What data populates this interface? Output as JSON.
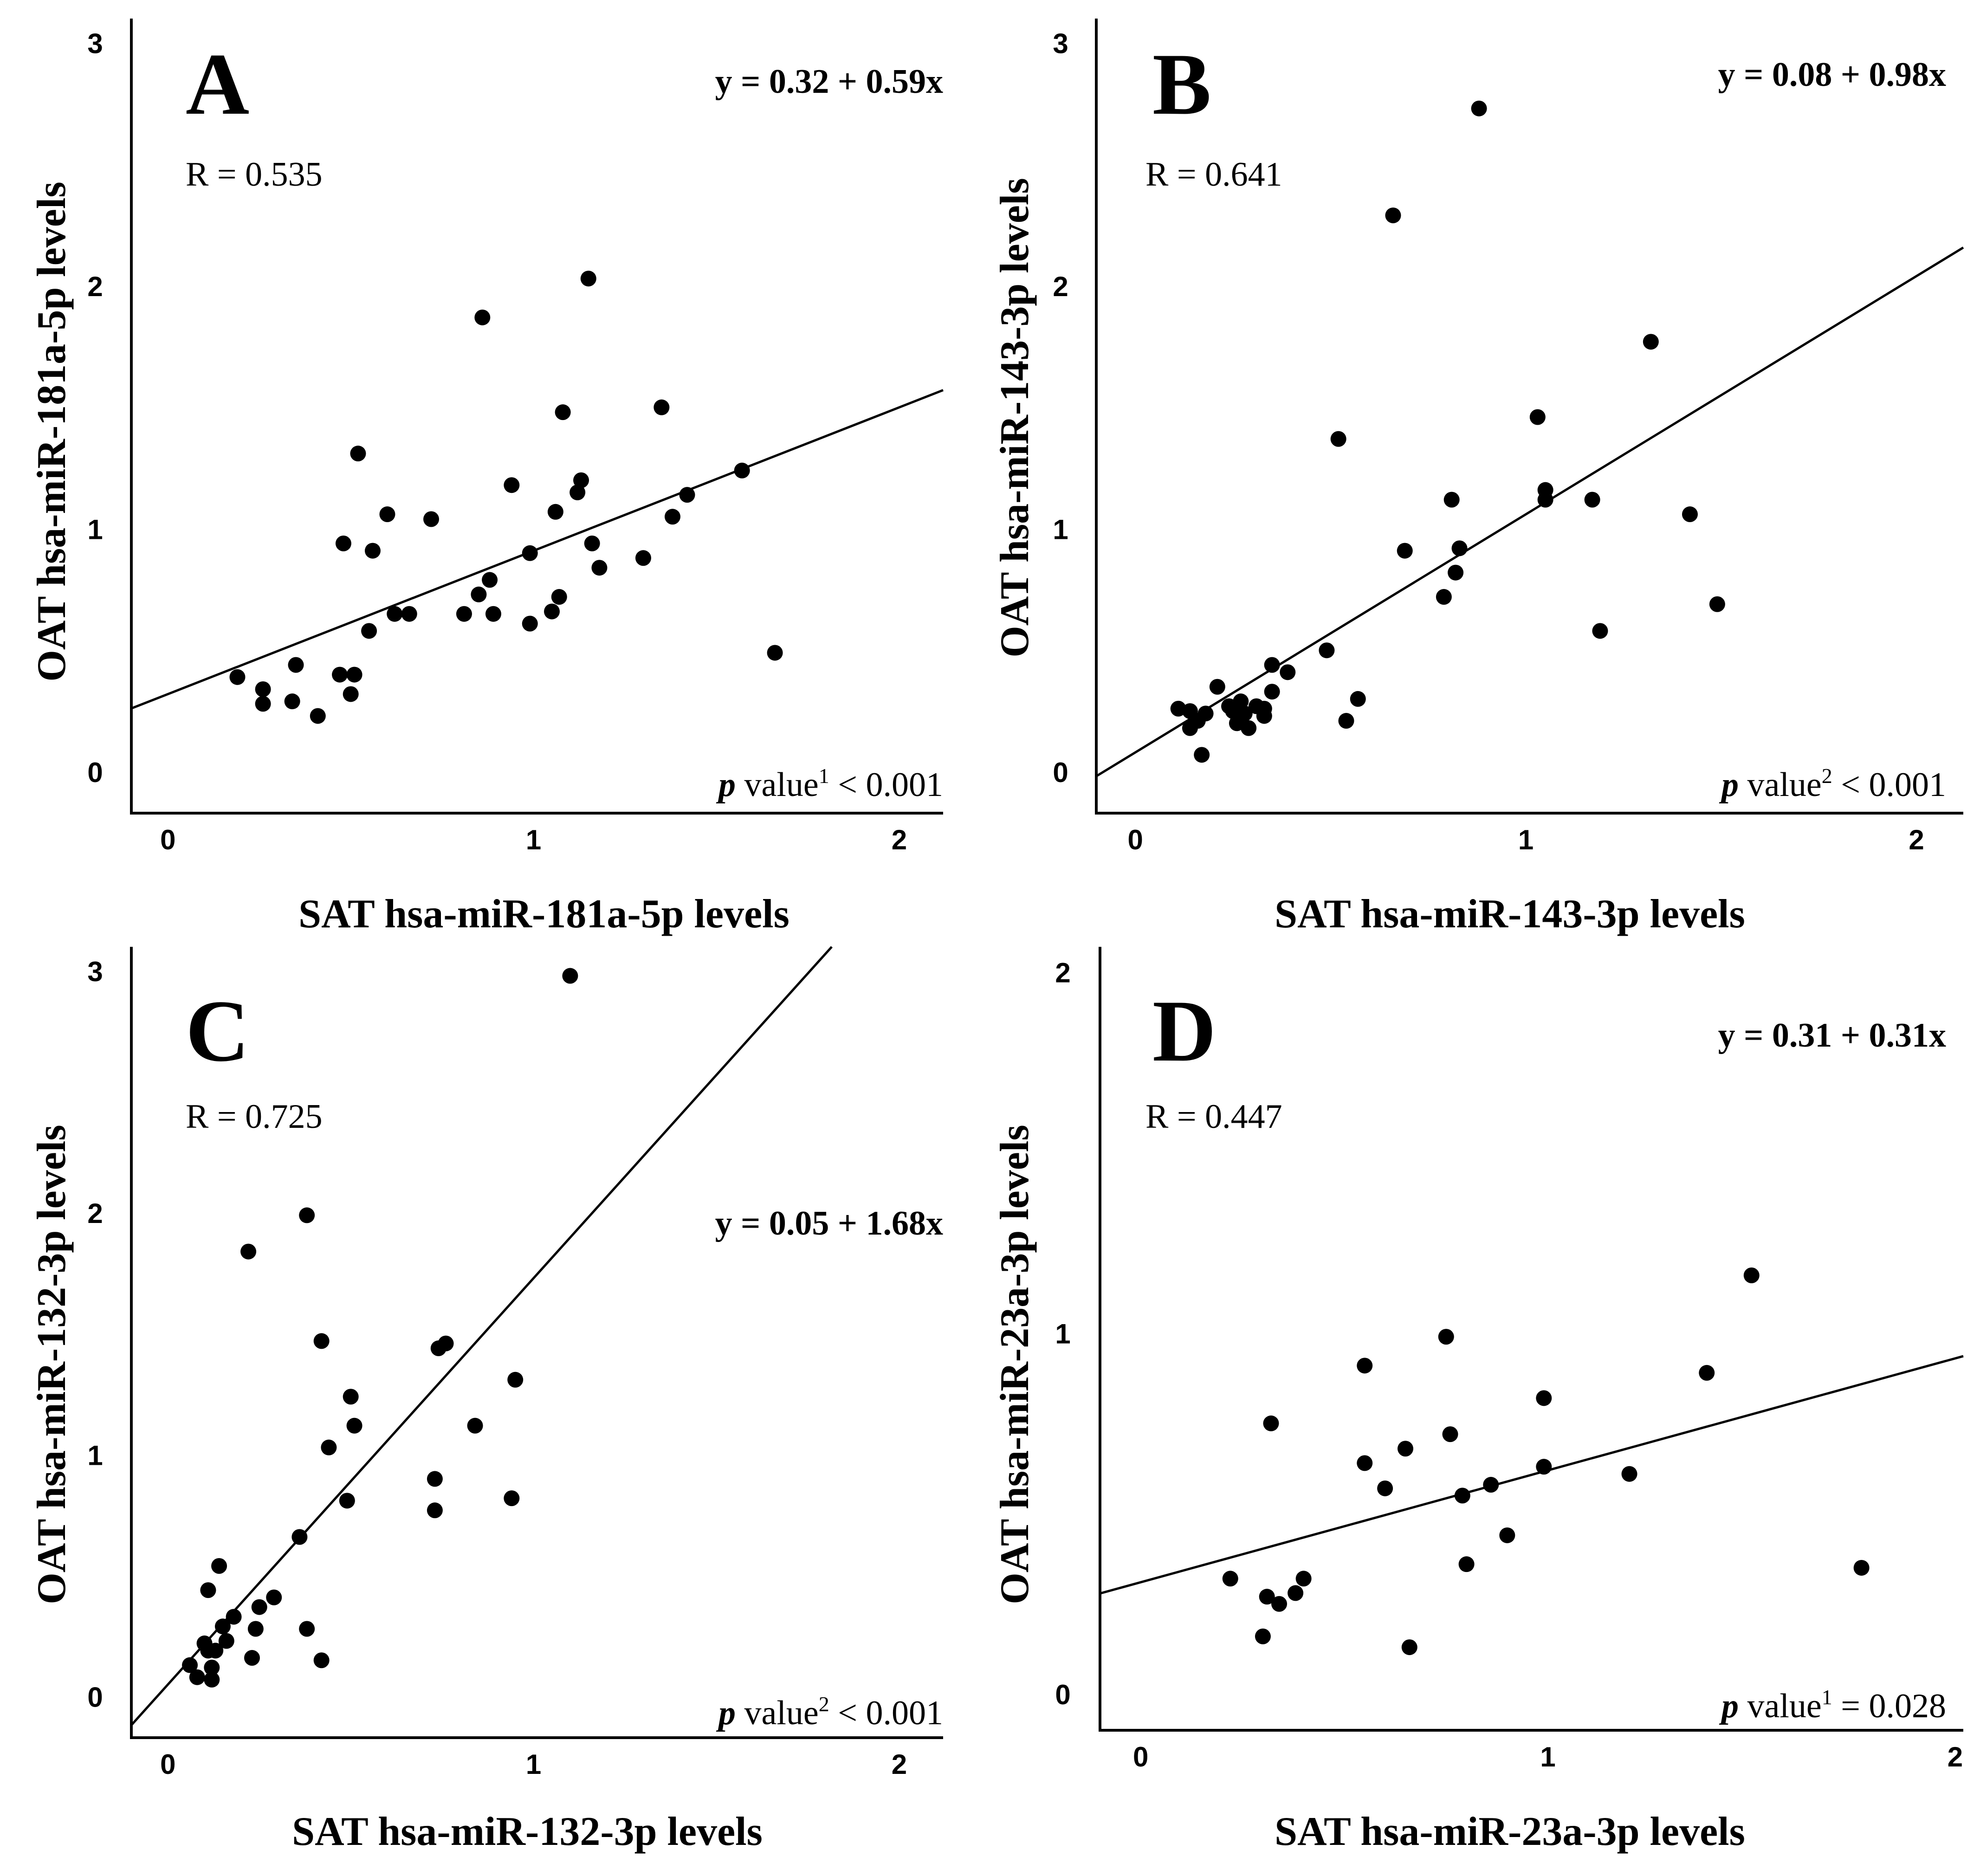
{
  "chart_data": [
    {
      "type": "scatter",
      "panel": "A",
      "xlabel": "SAT hsa-miR-181a-5p levels",
      "ylabel": "OAT hsa-miR-181a-5p levels",
      "xlim": [
        -0.1,
        2.12
      ],
      "ylim": [
        -0.17,
        3.1
      ],
      "xticks": [
        0,
        1,
        2
      ],
      "yticks": [
        0,
        1,
        2,
        3
      ],
      "xtick_labels": [
        "0",
        "1",
        "2"
      ],
      "ytick_labels": [
        "0",
        "1",
        "2",
        "3"
      ],
      "r_text": "R = 0.535",
      "equation": "y = 0.32 + 0.59x",
      "regression": {
        "intercept": 0.32,
        "slope": 0.59
      },
      "p_label": "p",
      "p_rest": " value",
      "p_sup": "1",
      "p_value": " < 0.001",
      "points": {
        "x": [
          0.19,
          0.26,
          0.26,
          0.34,
          0.35,
          0.41,
          0.47,
          0.48,
          0.5,
          0.51,
          0.52,
          0.55,
          0.56,
          0.6,
          0.62,
          0.66,
          0.72,
          0.81,
          0.85,
          0.86,
          0.88,
          0.89,
          0.94,
          0.99,
          0.99,
          1.05,
          1.06,
          1.07,
          1.08,
          1.12,
          1.13,
          1.15,
          1.16,
          1.18,
          1.3,
          1.35,
          1.38,
          1.42,
          1.57,
          1.66
        ],
        "y": [
          0.39,
          0.34,
          0.28,
          0.29,
          0.44,
          0.23,
          0.4,
          0.94,
          0.32,
          0.4,
          1.31,
          0.58,
          0.91,
          1.06,
          0.65,
          0.65,
          1.04,
          0.65,
          0.73,
          1.87,
          0.79,
          0.65,
          1.18,
          0.9,
          0.61,
          0.66,
          1.07,
          0.72,
          1.48,
          1.15,
          1.2,
          2.03,
          0.94,
          0.84,
          0.88,
          1.5,
          1.05,
          1.14,
          1.24,
          0.49
        ]
      }
    },
    {
      "type": "scatter",
      "panel": "B",
      "xlabel": "SAT hsa-miR-143-3p levels",
      "ylabel": "OAT hsa-miR-143-3p levels",
      "xlim": [
        -0.1,
        2.12
      ],
      "ylim": [
        -0.17,
        3.1
      ],
      "xticks": [
        0,
        1,
        2
      ],
      "yticks": [
        0,
        1,
        2,
        3
      ],
      "xtick_labels": [
        "0",
        "1",
        "2"
      ],
      "ytick_labels": [
        "0",
        "1",
        "2",
        "3"
      ],
      "r_text": "R = 0.641",
      "equation": "y = 0.08 + 0.98x",
      "regression": {
        "intercept": 0.08,
        "slope": 0.98
      },
      "p_label": "p",
      "p_rest": " value",
      "p_sup": "2",
      "p_value": " < 0.001",
      "points": {
        "x": [
          0.11,
          0.14,
          0.14,
          0.16,
          0.17,
          0.18,
          0.21,
          0.24,
          0.25,
          0.26,
          0.27,
          0.28,
          0.29,
          0.31,
          0.33,
          0.33,
          0.35,
          0.35,
          0.39,
          0.49,
          0.52,
          0.54,
          0.57,
          0.66,
          0.69,
          0.79,
          0.81,
          0.82,
          0.83,
          0.88,
          1.03,
          1.05,
          1.05,
          1.17,
          1.19,
          1.32,
          1.42,
          1.49
        ],
        "y": [
          0.26,
          0.18,
          0.25,
          0.21,
          0.07,
          0.24,
          0.35,
          0.27,
          0.25,
          0.2,
          0.29,
          0.24,
          0.18,
          0.27,
          0.26,
          0.23,
          0.44,
          0.33,
          0.41,
          0.5,
          1.37,
          0.21,
          0.3,
          2.29,
          0.91,
          0.72,
          1.12,
          0.82,
          0.92,
          2.73,
          1.46,
          1.16,
          1.12,
          1.12,
          0.58,
          1.77,
          1.06,
          0.69
        ]
      }
    },
    {
      "type": "scatter",
      "panel": "C",
      "xlabel": "SAT hsa-miR-132-3p levels",
      "ylabel": "OAT hsa-miR-132-3p levels",
      "xlim": [
        -0.1,
        2.12
      ],
      "ylim": [
        -0.17,
        3.1
      ],
      "xticks": [
        0,
        1,
        2
      ],
      "yticks": [
        0,
        1,
        2,
        3
      ],
      "xtick_labels": [
        "0",
        "1",
        "2"
      ],
      "ytick_labels": [
        "0",
        "1",
        "2",
        "3"
      ],
      "r_text": "R = 0.725",
      "equation": "y = 0.05 + 1.68x",
      "regression": {
        "intercept": 0.05,
        "slope": 1.68
      },
      "p_label": "p",
      "p_rest": " value",
      "p_sup": "2",
      "p_value": " < 0.001",
      "points": {
        "x": [
          0.06,
          0.08,
          0.1,
          0.11,
          0.11,
          0.12,
          0.12,
          0.13,
          0.14,
          0.15,
          0.16,
          0.18,
          0.22,
          0.23,
          0.24,
          0.25,
          0.29,
          0.36,
          0.38,
          0.38,
          0.42,
          0.42,
          0.44,
          0.49,
          0.5,
          0.51,
          0.73,
          0.73,
          0.74,
          0.76,
          0.84,
          0.94,
          0.95,
          1.1
        ],
        "y": [
          0.13,
          0.08,
          0.22,
          0.19,
          0.44,
          0.12,
          0.07,
          0.19,
          0.54,
          0.29,
          0.23,
          0.33,
          1.84,
          0.16,
          0.28,
          0.37,
          0.41,
          0.66,
          1.99,
          0.28,
          0.15,
          1.47,
          1.03,
          0.81,
          1.24,
          1.12,
          0.9,
          0.77,
          1.44,
          1.46,
          1.12,
          0.82,
          1.31,
          2.98
        ]
      }
    },
    {
      "type": "scatter",
      "panel": "D",
      "xlabel": "SAT hsa-miR-23a-3p levels",
      "ylabel": "OAT hsa-miR-23a-3p levels",
      "xlim": [
        -0.1,
        2.02
      ],
      "ylim": [
        -0.1,
        2.07
      ],
      "xticks": [
        0,
        1,
        2
      ],
      "yticks": [
        0,
        1,
        2
      ],
      "xtick_labels": [
        "0",
        "1",
        "2"
      ],
      "ytick_labels": [
        "0",
        "1",
        "2"
      ],
      "r_text": "R = 0.447",
      "equation": "y = 0.31 + 0.31x",
      "regression": {
        "intercept": 0.31,
        "slope": 0.31
      },
      "p_label": "p",
      "p_rest": " value",
      "p_sup": "1",
      "p_value": " = 0.028",
      "points": {
        "x": [
          0.22,
          0.3,
          0.31,
          0.32,
          0.34,
          0.38,
          0.4,
          0.55,
          0.55,
          0.6,
          0.65,
          0.66,
          0.75,
          0.76,
          0.79,
          0.8,
          0.86,
          0.9,
          0.99,
          0.99,
          1.2,
          1.39,
          1.5,
          1.77
        ],
        "y": [
          0.32,
          0.16,
          0.27,
          0.75,
          0.25,
          0.28,
          0.32,
          0.91,
          0.64,
          0.57,
          0.68,
          0.13,
          0.99,
          0.72,
          0.55,
          0.36,
          0.58,
          0.44,
          0.82,
          0.63,
          0.61,
          0.89,
          1.16,
          0.35
        ]
      }
    }
  ]
}
